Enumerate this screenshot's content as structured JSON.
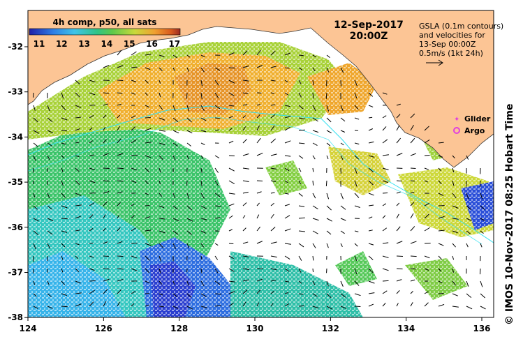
{
  "map": {
    "colorbar_title": "4h comp, p50, all sats",
    "colorbar_ticks": [
      "11",
      "12",
      "13",
      "14",
      "15",
      "16",
      "17"
    ],
    "colorbar_colors": [
      "#1f1fa8",
      "#2f7fe6",
      "#3fc4e8",
      "#2fc486",
      "#5ec94a",
      "#c9d93a",
      "#f0a030",
      "#d85a1e",
      "#9a2a22"
    ],
    "date": "12-Sep-2017",
    "time": "20:00Z",
    "gsla_note_lines": [
      "GSLA (0.1m contours)",
      "and velocities for",
      "13-Sep 00:00Z",
      "0.5m/s (1kt 24h)"
    ],
    "legend": {
      "glider": "Glider",
      "argo": "Argo",
      "glider_color": "#e040e0",
      "argo_color": "#e040e0"
    },
    "x_ticks": [
      "124",
      "126",
      "128",
      "130",
      "132",
      "134",
      "136"
    ],
    "y_ticks": [
      "-32",
      "-33",
      "-34",
      "-35",
      "-36",
      "-37",
      "-38"
    ],
    "land_color": "#fcc595",
    "credit": "© IMOS 10-Nov-2017 08:25 Hobart Time"
  }
}
